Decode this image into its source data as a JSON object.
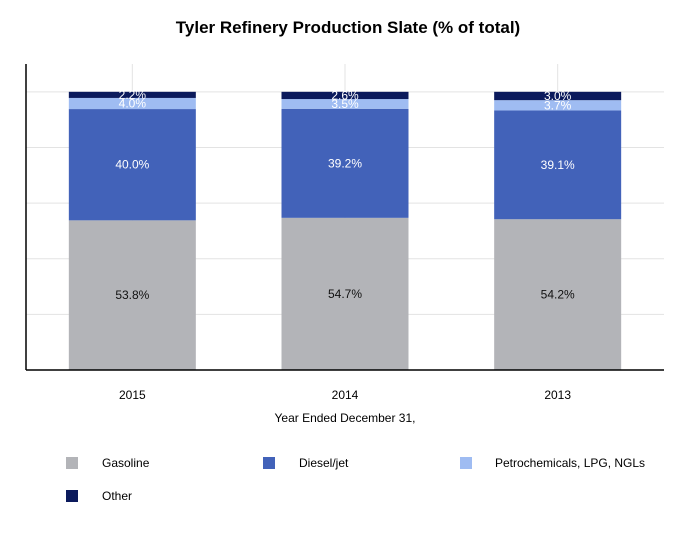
{
  "chart_data": {
    "type": "bar",
    "stacked": true,
    "title": "Tyler Refinery Production Slate (% of total)",
    "xlabel": "Year Ended December 31,",
    "ylabel": "",
    "ylim": [
      0,
      110
    ],
    "grid": true,
    "categories": [
      "2015",
      "2014",
      "2013"
    ],
    "series": [
      {
        "name": "Gasoline",
        "color": "#b3b4b8",
        "values": [
          53.8,
          54.7,
          54.2
        ],
        "labels": [
          "53.8%",
          "54.7%",
          "54.2%"
        ],
        "label_color": "#111111"
      },
      {
        "name": "Diesel/jet",
        "color": "#4262b9",
        "values": [
          40.0,
          39.2,
          39.1
        ],
        "labels": [
          "40.0%",
          "39.2%",
          "39.1%"
        ],
        "label_color": "#ffffff"
      },
      {
        "name": "Petrochemicals, LPG, NGLs",
        "color": "#9fbcf2",
        "values": [
          4.0,
          3.5,
          3.7
        ],
        "labels": [
          "4.0%",
          "3.5%",
          "3.7%"
        ],
        "label_color": "#ffffff"
      },
      {
        "name": "Other",
        "color": "#0b1a5c",
        "values": [
          2.2,
          2.6,
          3.0
        ],
        "labels": [
          "2.2%",
          "2.6%",
          "3.0%"
        ],
        "label_color": "#ffffff"
      }
    ],
    "legend_position": "bottom"
  }
}
